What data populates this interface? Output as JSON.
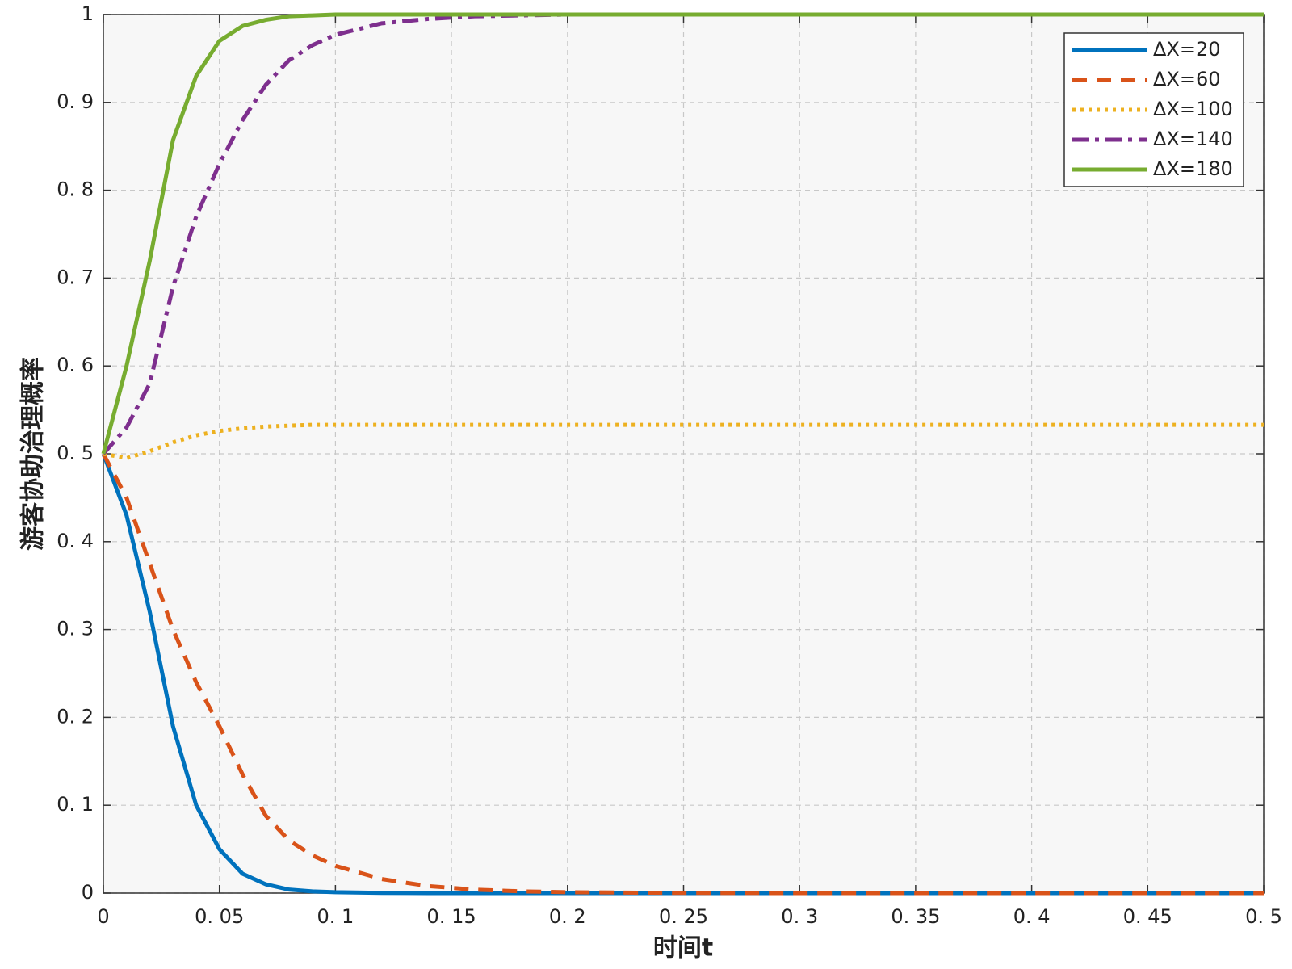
{
  "chart_data": {
    "type": "line",
    "x_label": "时间t",
    "y_label": "游客协助治理概率",
    "x": [
      0,
      0.01,
      0.02,
      0.03,
      0.04,
      0.05,
      0.06,
      0.07,
      0.08,
      0.09,
      0.1,
      0.12,
      0.14,
      0.16,
      0.18,
      0.2,
      0.25,
      0.3,
      0.35,
      0.4,
      0.45,
      0.5
    ],
    "series": [
      {
        "name": "ΔX=20",
        "color": "#0072BD",
        "linestyle": "-",
        "values": [
          0.5,
          0.43,
          0.32,
          0.19,
          0.1,
          0.05,
          0.022,
          0.01,
          0.004,
          0.002,
          0.001,
          0.0002,
          0,
          0,
          0,
          0,
          0,
          0,
          0,
          0,
          0,
          0
        ]
      },
      {
        "name": "ΔX=60",
        "color": "#D95319",
        "linestyle": "--",
        "values": [
          0.5,
          0.45,
          0.375,
          0.3,
          0.24,
          0.19,
          0.135,
          0.088,
          0.06,
          0.043,
          0.031,
          0.016,
          0.008,
          0.004,
          0.002,
          0.001,
          0.0002,
          0,
          0,
          0,
          0,
          0
        ]
      },
      {
        "name": "ΔX=100",
        "color": "#EDB120",
        "linestyle": ":",
        "values": [
          0.5,
          0.495,
          0.503,
          0.513,
          0.521,
          0.526,
          0.529,
          0.531,
          0.532,
          0.533,
          0.533,
          0.533,
          0.533,
          0.533,
          0.533,
          0.533,
          0.533,
          0.533,
          0.533,
          0.533,
          0.533,
          0.533
        ]
      },
      {
        "name": "ΔX=140",
        "color": "#7E2F8E",
        "linestyle": "-.",
        "values": [
          0.5,
          0.53,
          0.58,
          0.69,
          0.77,
          0.83,
          0.88,
          0.92,
          0.948,
          0.965,
          0.977,
          0.99,
          0.995,
          0.998,
          0.999,
          1,
          1,
          1,
          1,
          1,
          1,
          1
        ]
      },
      {
        "name": "ΔX=180",
        "color": "#77AC30",
        "linestyle": "-",
        "values": [
          0.5,
          0.6,
          0.72,
          0.857,
          0.93,
          0.97,
          0.987,
          0.994,
          0.998,
          0.999,
          1,
          1,
          1,
          1,
          1,
          1,
          1,
          1,
          1,
          1,
          1,
          1
        ]
      }
    ],
    "xlim": [
      0,
      0.5
    ],
    "ylim": [
      0,
      1
    ],
    "xticks": [
      0,
      {
        "value": 0.05,
        "label": "0. 05"
      },
      {
        "value": 0.1,
        "label": "0. 1"
      },
      {
        "value": 0.15,
        "label": "0. 15"
      },
      {
        "value": 0.2,
        "label": "0. 2"
      },
      {
        "value": 0.25,
        "label": "0. 25"
      },
      {
        "value": 0.3,
        "label": "0. 3"
      },
      {
        "value": 0.35,
        "label": "0. 35"
      },
      {
        "value": 0.4,
        "label": "0. 4"
      },
      {
        "value": 0.45,
        "label": "0. 45"
      },
      {
        "value": 0.5,
        "label": "0. 5"
      }
    ],
    "yticks": [
      0,
      {
        "value": 0.1,
        "label": "0. 1"
      },
      {
        "value": 0.2,
        "label": "0. 2"
      },
      {
        "value": 0.3,
        "label": "0. 3"
      },
      {
        "value": 0.4,
        "label": "0. 4"
      },
      {
        "value": 0.5,
        "label": "0. 5"
      },
      {
        "value": 0.6,
        "label": "0. 6"
      },
      {
        "value": 0.7,
        "label": "0. 7"
      },
      {
        "value": 0.8,
        "label": "0. 8"
      },
      {
        "value": 0.9,
        "label": "0. 9"
      },
      1
    ],
    "grid": true,
    "legend_position": "northeast"
  }
}
